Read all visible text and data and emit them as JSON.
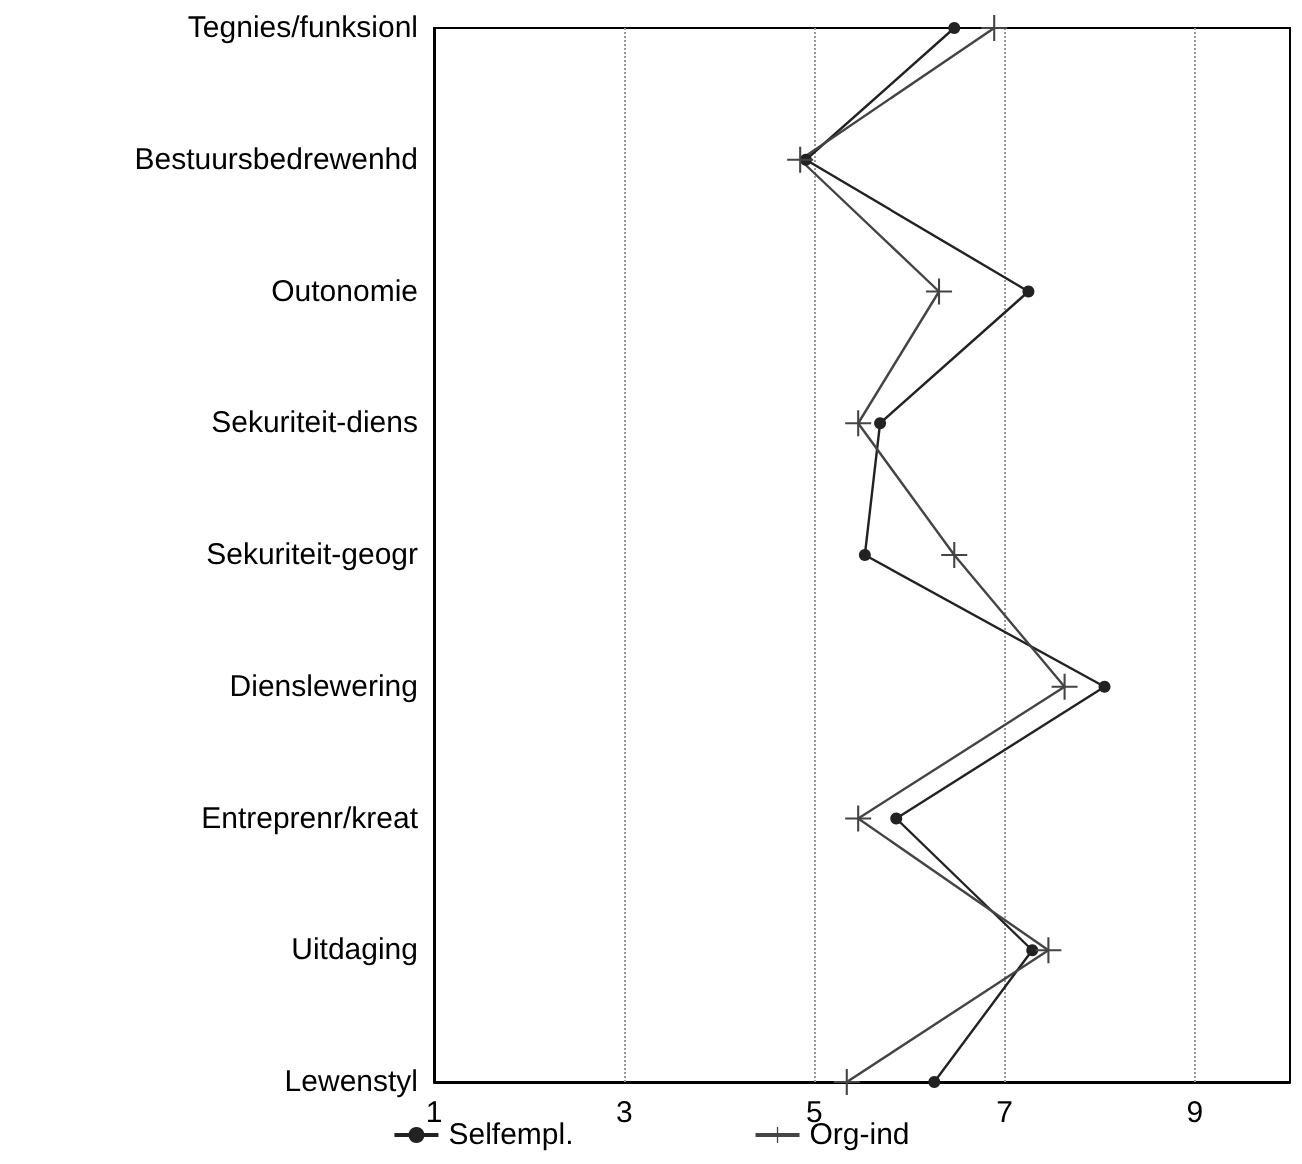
{
  "chart_data": {
    "type": "line",
    "orientation": "horizontal",
    "categories": [
      "Tegnies/funksionl",
      "Bestuursbedrewenhd",
      "Outonomie",
      "Sekuriteit-diens",
      "Sekuriteit-geogr",
      "Dienslewering",
      "Entreprenr/kreat",
      "Uitdaging",
      "Lewenstyl"
    ],
    "series": [
      {
        "name": "Selfempl.",
        "color": "#222222",
        "marker": "circle",
        "values": [
          6.47,
          4.91,
          7.25,
          5.69,
          5.53,
          8.05,
          5.86,
          7.29,
          6.26
        ]
      },
      {
        "name": "Org-ind",
        "color": "#444444",
        "marker": "cross",
        "values": [
          6.89,
          4.85,
          6.31,
          5.46,
          6.47,
          7.63,
          5.46,
          7.46,
          5.34
        ]
      }
    ],
    "xlim": [
      1,
      10
    ],
    "xticks": [
      1,
      3,
      5,
      7,
      9
    ],
    "grid": "x",
    "legend": "bottom"
  }
}
